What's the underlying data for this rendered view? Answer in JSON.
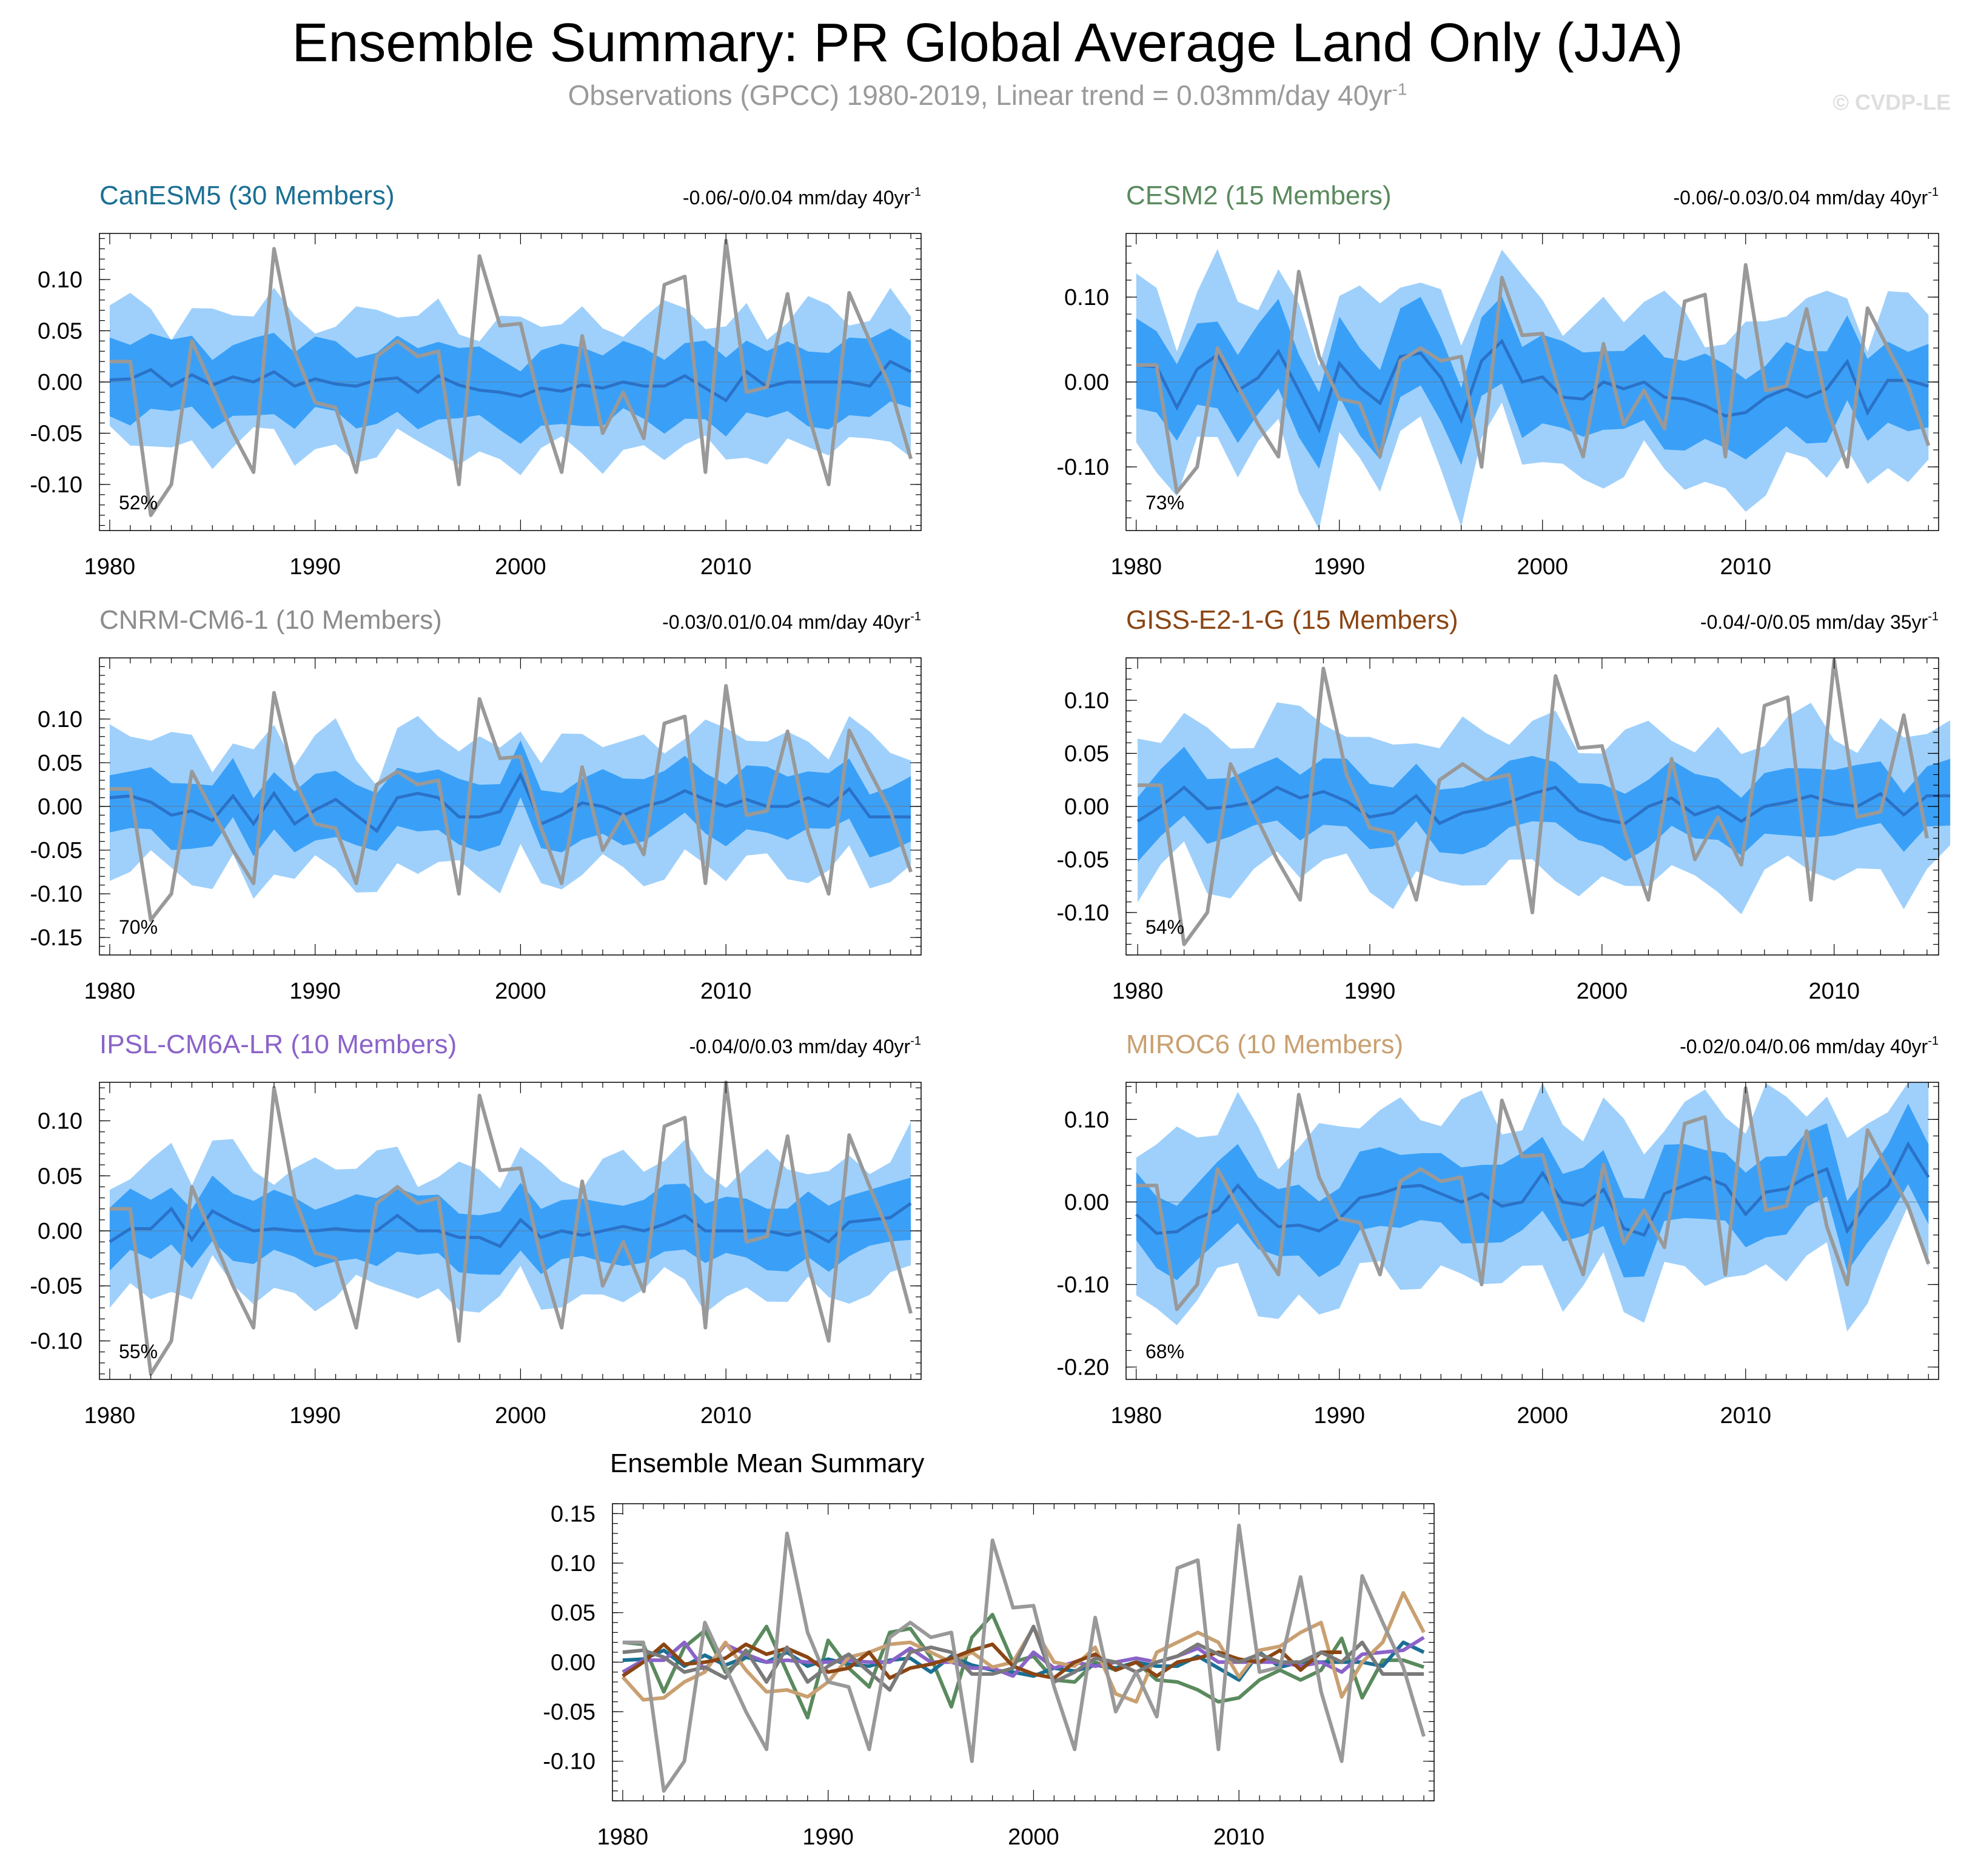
{
  "title": "Ensemble Summary: PR Global Average Land Only (JJA)",
  "subtitle": {
    "text": "Observations (GPCC) 1980-2019, Linear trend = 0.03mm/day 40yr",
    "superscript": "-1"
  },
  "copyright": "© CVDP-LE",
  "chart_data": [
    {
      "type": "area",
      "title": "CanESM5 (30 Members)",
      "title_color": "#1a6f94",
      "trend_text": "-0.06/-0/0.04 mm/day 40yr",
      "trend_superscript": "-1",
      "percent_label": "52%",
      "x_start": 1980,
      "x_end": 2019,
      "ylim": [
        -0.145,
        0.145
      ],
      "yticks": [
        -0.1,
        -0.05,
        0.0,
        0.05,
        0.1
      ],
      "ytick_labels": [
        "-0.10",
        "-0.05",
        "0.00",
        "0.05",
        "0.10"
      ],
      "xticks": [
        1980,
        1990,
        2000,
        2010
      ],
      "xtick_labels": [
        "1980",
        "1990",
        "2000",
        "2010"
      ],
      "ens_mean_offset": [
        0.002,
        0.003,
        0.012,
        -0.004,
        0.007,
        -0.003,
        0.005,
        0.0,
        0.01,
        -0.004,
        0.003,
        -0.002,
        -0.004,
        0.002,
        0.004,
        -0.01,
        0.006,
        -0.003,
        -0.008,
        -0.01,
        -0.014,
        -0.006,
        -0.009,
        -0.003,
        -0.006,
        0.0,
        -0.004,
        -0.004,
        0.006,
        -0.006,
        -0.018,
        0.01,
        -0.005,
        0.0,
        0.0,
        0.0,
        0.0,
        -0.004,
        0.02,
        0.01
      ],
      "inner_halfwidth": 0.036,
      "outer_halfwidth": 0.065
    },
    {
      "type": "area",
      "title": "CESM2 (15 Members)",
      "title_color": "#5a8a5e",
      "trend_text": "-0.06/-0.03/0.04 mm/day 40yr",
      "trend_superscript": "-1",
      "percent_label": "73%",
      "x_start": 1980,
      "x_end": 2019,
      "ylim": [
        -0.175,
        0.175
      ],
      "yticks": [
        -0.1,
        0.0,
        0.1
      ],
      "ytick_labels": [
        "-0.10",
        "0.00",
        "0.10"
      ],
      "xticks": [
        1980,
        1990,
        2000,
        2010
      ],
      "xtick_labels": [
        "1980",
        "1990",
        "2000",
        "2010"
      ],
      "ens_mean_offset": [
        0.02,
        0.018,
        -0.03,
        0.015,
        0.032,
        -0.01,
        0.005,
        0.036,
        -0.01,
        -0.056,
        0.022,
        -0.006,
        -0.025,
        0.03,
        0.034,
        0.005,
        -0.045,
        0.025,
        0.048,
        0.0,
        0.006,
        -0.018,
        -0.02,
        0.0,
        -0.008,
        0.0,
        -0.018,
        -0.02,
        -0.028,
        -0.04,
        -0.036,
        -0.018,
        -0.008,
        -0.018,
        -0.008,
        0.024,
        -0.036,
        0.002,
        0.002,
        -0.005
      ],
      "inner_halfwidth": 0.05,
      "outer_halfwidth": 0.095
    },
    {
      "type": "area",
      "title": "CNRM-CM6-1 (10 Members)",
      "title_color": "#8c8c8c",
      "trend_text": "-0.03/0.01/0.04 mm/day 40yr",
      "trend_superscript": "-1",
      "percent_label": "70%",
      "x_start": 1980,
      "x_end": 2019,
      "ylim": [
        -0.17,
        0.17
      ],
      "yticks": [
        -0.15,
        -0.1,
        -0.05,
        0.0,
        0.05,
        0.1
      ],
      "ytick_labels": [
        "-0.15",
        "-0.10",
        "-0.05",
        "0.00",
        "0.05",
        "0.10"
      ],
      "xticks": [
        1980,
        1990,
        2000,
        2010
      ],
      "xtick_labels": [
        "1980",
        "1990",
        "2000",
        "2010"
      ],
      "ens_mean_offset": [
        0.01,
        0.012,
        0.005,
        -0.01,
        -0.005,
        -0.016,
        0.012,
        -0.02,
        0.015,
        -0.02,
        -0.004,
        0.008,
        -0.01,
        -0.028,
        0.01,
        0.015,
        0.01,
        -0.012,
        -0.012,
        -0.006,
        0.036,
        -0.02,
        -0.01,
        0.004,
        0.0,
        -0.01,
        0.0,
        0.006,
        0.018,
        0.008,
        0.0,
        0.008,
        0.0,
        0.0,
        0.01,
        0.0,
        0.02,
        -0.012,
        -0.012,
        -0.012
      ],
      "inner_halfwidth": 0.035,
      "outer_halfwidth": 0.075
    },
    {
      "type": "area",
      "title": "GISS-E2-1-G (15 Members)",
      "title_color": "#8b4513",
      "trend_text": "-0.04/-0/0.05 mm/day 35yr",
      "trend_superscript": "-1",
      "percent_label": "54%",
      "x_start": 1980,
      "x_end": 2014,
      "ylim": [
        -0.14,
        0.14
      ],
      "yticks": [
        -0.1,
        -0.05,
        0.0,
        0.05,
        0.1
      ],
      "ytick_labels": [
        "-0.10",
        "-0.05",
        "0.00",
        "0.05",
        "0.10"
      ],
      "xticks": [
        1980,
        1990,
        2000,
        2010
      ],
      "xtick_labels": [
        "1980",
        "1990",
        "2000",
        "2010"
      ],
      "ens_mean_offset": [
        -0.014,
        0.0,
        0.018,
        -0.002,
        0.0,
        0.004,
        0.018,
        0.008,
        0.014,
        0.005,
        -0.01,
        -0.006,
        0.01,
        -0.016,
        -0.006,
        -0.002,
        0.004,
        0.012,
        0.018,
        -0.004,
        -0.012,
        -0.016,
        0.0,
        0.008,
        -0.008,
        0.0,
        -0.014,
        0.0,
        0.004,
        0.01,
        0.003,
        0.0,
        0.012,
        -0.008,
        0.01,
        0.01
      ],
      "inner_halfwidth": 0.03,
      "outer_halfwidth": 0.068
    },
    {
      "type": "area",
      "title": "IPSL-CM6A-LR (10 Members)",
      "title_color": "#8a63c9",
      "trend_text": "-0.04/0/0.03 mm/day 40yr",
      "trend_superscript": "-1",
      "percent_label": "55%",
      "x_start": 1980,
      "x_end": 2019,
      "ylim": [
        -0.135,
        0.135
      ],
      "yticks": [
        -0.1,
        -0.05,
        0.0,
        0.05,
        0.1
      ],
      "ytick_labels": [
        "-0.10",
        "-0.05",
        "0.00",
        "0.05",
        "0.10"
      ],
      "xticks": [
        1980,
        1990,
        2000,
        2010
      ],
      "xtick_labels": [
        "1980",
        "1990",
        "2000",
        "2010"
      ],
      "ens_mean_offset": [
        -0.01,
        0.002,
        0.002,
        0.02,
        -0.008,
        0.018,
        0.008,
        0.0,
        0.002,
        0.0,
        0.0,
        0.002,
        0.0,
        0.0,
        0.014,
        0.0,
        0.0,
        -0.006,
        -0.006,
        -0.014,
        0.01,
        -0.006,
        0.0,
        -0.004,
        0.0,
        0.004,
        0.0,
        0.006,
        0.014,
        0.0,
        0.0,
        0.0,
        0.0,
        -0.004,
        0.0,
        -0.01,
        0.008,
        0.01,
        0.012,
        0.025
      ],
      "inner_halfwidth": 0.028,
      "outer_halfwidth": 0.058
    },
    {
      "type": "area",
      "title": "MIROC6 (10 Members)",
      "title_color": "#c9a071",
      "trend_text": "-0.02/0.04/0.06 mm/day 40yr",
      "trend_superscript": "-1",
      "percent_label": "68%",
      "x_start": 1980,
      "x_end": 2019,
      "ylim": [
        -0.215,
        0.145
      ],
      "yticks": [
        -0.2,
        -0.1,
        0.0,
        0.1
      ],
      "ytick_labels": [
        "-0.20",
        "-0.10",
        "0.00",
        "0.10"
      ],
      "xticks": [
        1980,
        1990,
        2000,
        2010
      ],
      "xtick_labels": [
        "1980",
        "1990",
        "2000",
        "2010"
      ],
      "ens_mean_offset": [
        -0.015,
        -0.038,
        -0.036,
        -0.02,
        -0.01,
        0.02,
        -0.008,
        -0.03,
        -0.028,
        -0.035,
        -0.02,
        0.005,
        0.01,
        0.018,
        0.02,
        0.01,
        0.0,
        0.01,
        -0.005,
        0.0,
        0.035,
        0.0,
        -0.004,
        0.015,
        -0.032,
        -0.04,
        0.01,
        0.02,
        0.03,
        0.02,
        -0.015,
        0.012,
        0.016,
        0.03,
        0.04,
        -0.035,
        0.0,
        0.02,
        0.07,
        0.03
      ],
      "inner_halfwidth": 0.045,
      "outer_halfwidth": 0.1
    },
    {
      "type": "line",
      "title": "Ensemble Mean Summary",
      "x_start": 1980,
      "x_end": 2019,
      "ylim": [
        -0.14,
        0.16
      ],
      "yticks": [
        -0.1,
        -0.05,
        0.0,
        0.05,
        0.1,
        0.15
      ],
      "ytick_labels": [
        "-0.10",
        "-0.05",
        "0.00",
        "0.05",
        "0.10",
        "0.15"
      ],
      "xticks": [
        1980,
        1990,
        2000,
        2010
      ],
      "xtick_labels": [
        "1980",
        "1990",
        "2000",
        "2010"
      ],
      "series": [
        {
          "name": "CESM2",
          "color": "#5a8a5e",
          "start": 1980,
          "values": [
            0.02,
            0.018,
            -0.03,
            0.015,
            0.032,
            -0.01,
            0.005,
            0.036,
            -0.01,
            -0.056,
            0.022,
            -0.006,
            -0.025,
            0.03,
            0.034,
            0.005,
            -0.045,
            0.025,
            0.048,
            0.0,
            0.006,
            -0.018,
            -0.02,
            0.0,
            -0.008,
            0.0,
            -0.018,
            -0.02,
            -0.028,
            -0.04,
            -0.036,
            -0.018,
            -0.008,
            -0.018,
            -0.008,
            0.024,
            -0.036,
            0.002,
            0.002,
            -0.005
          ]
        },
        {
          "name": "CanESM5",
          "color": "#1a6f94",
          "start": 1980,
          "values": [
            0.002,
            0.003,
            0.012,
            -0.004,
            0.007,
            -0.003,
            0.005,
            0.0,
            0.01,
            -0.004,
            0.003,
            -0.002,
            -0.004,
            0.002,
            0.004,
            -0.01,
            0.006,
            -0.003,
            -0.008,
            -0.01,
            -0.014,
            -0.006,
            -0.009,
            -0.003,
            -0.006,
            0.0,
            -0.004,
            -0.004,
            0.006,
            -0.006,
            -0.018,
            0.01,
            -0.005,
            0.0,
            0.0,
            0.0,
            0.0,
            -0.004,
            0.02,
            0.01
          ]
        },
        {
          "name": "IPSL-CM6A-LR",
          "color": "#8a63c9",
          "start": 1980,
          "values": [
            -0.01,
            0.002,
            0.002,
            0.02,
            -0.008,
            0.018,
            0.008,
            0.0,
            0.002,
            0.0,
            0.0,
            0.002,
            0.0,
            0.0,
            0.014,
            0.0,
            0.0,
            -0.006,
            -0.006,
            -0.014,
            0.01,
            -0.006,
            0.0,
            -0.004,
            0.0,
            0.004,
            0.0,
            0.006,
            0.014,
            0.0,
            0.0,
            0.0,
            0.0,
            -0.004,
            0.0,
            -0.01,
            0.008,
            0.01,
            0.012,
            0.025
          ]
        },
        {
          "name": "MIROC6",
          "color": "#c9a071",
          "start": 1980,
          "values": [
            -0.015,
            -0.038,
            -0.036,
            -0.02,
            -0.01,
            0.02,
            -0.008,
            -0.03,
            -0.028,
            -0.035,
            -0.02,
            0.005,
            0.01,
            0.018,
            0.02,
            0.01,
            0.0,
            0.01,
            -0.005,
            0.0,
            0.035,
            0.0,
            -0.004,
            0.015,
            -0.032,
            -0.04,
            0.01,
            0.02,
            0.03,
            0.02,
            -0.015,
            0.012,
            0.016,
            0.03,
            0.04,
            -0.035,
            0.0,
            0.02,
            0.07,
            0.03
          ]
        },
        {
          "name": "GISS-E2-1-G",
          "color": "#8b4513",
          "start": 1980,
          "values": [
            -0.014,
            0.0,
            0.018,
            -0.002,
            0.0,
            0.004,
            0.018,
            0.008,
            0.014,
            0.005,
            -0.01,
            -0.006,
            0.01,
            -0.016,
            -0.006,
            -0.002,
            0.004,
            0.012,
            0.018,
            -0.004,
            -0.012,
            -0.016,
            0.0,
            0.008,
            -0.008,
            0.0,
            -0.014,
            0.0,
            0.004,
            0.01,
            0.003,
            0.0,
            0.012,
            -0.008,
            0.01,
            0.01
          ]
        },
        {
          "name": "CNRM-CM6-1",
          "color": "#7a7a7a",
          "start": 1980,
          "values": [
            0.01,
            0.012,
            0.005,
            -0.01,
            -0.005,
            -0.016,
            0.012,
            -0.02,
            0.015,
            -0.02,
            -0.004,
            0.008,
            -0.01,
            -0.028,
            0.01,
            0.015,
            0.01,
            -0.012,
            -0.012,
            -0.006,
            0.036,
            -0.02,
            -0.01,
            0.004,
            0.0,
            -0.01,
            0.0,
            0.006,
            0.018,
            0.008,
            0.0,
            0.008,
            0.0,
            0.0,
            0.01,
            0.0,
            0.02,
            -0.012,
            -0.012,
            -0.012
          ]
        }
      ]
    }
  ],
  "observations": {
    "name": "GPCC",
    "color": "#999999",
    "start": 1980,
    "values": [
      0.02,
      0.02,
      -0.13,
      -0.1,
      0.04,
      -0.005,
      -0.05,
      -0.088,
      0.13,
      0.03,
      -0.02,
      -0.025,
      -0.088,
      0.025,
      0.04,
      0.025,
      0.03,
      -0.1,
      0.123,
      0.055,
      0.057,
      -0.025,
      -0.088,
      0.045,
      -0.05,
      -0.01,
      -0.055,
      0.095,
      0.103,
      -0.088,
      0.138,
      -0.01,
      -0.005,
      0.086,
      -0.03,
      -0.1,
      0.087,
      0.04,
      -0.005,
      -0.075
    ]
  }
}
